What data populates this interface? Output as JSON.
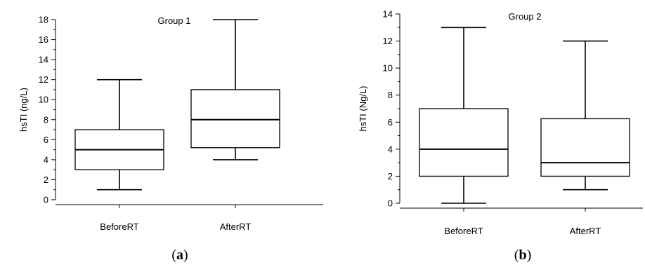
{
  "chart_data": [
    {
      "type": "box",
      "panel": "(a)",
      "panel_letter": "a",
      "title": "Group 1",
      "ylabel": "hsTI (ng/L)",
      "xlabel": "",
      "ylim": [
        0,
        18
      ],
      "yticks": [
        0,
        2,
        4,
        6,
        8,
        10,
        12,
        14,
        16,
        18
      ],
      "categories": [
        "BeforeRT",
        "AfterRT"
      ],
      "boxes": [
        {
          "category": "BeforeRT",
          "min": 1,
          "q1": 3,
          "median": 5,
          "q3": 7,
          "max": 12
        },
        {
          "category": "AfterRT",
          "min": 4,
          "q1": 5.2,
          "median": 8,
          "q3": 11,
          "max": 18
        }
      ]
    },
    {
      "type": "box",
      "panel": "(b)",
      "panel_letter": "b",
      "title": "Group 2",
      "ylabel": "hsTI (Ng/L)",
      "xlabel": "",
      "ylim": [
        0,
        14
      ],
      "yticks": [
        0,
        2,
        4,
        6,
        8,
        10,
        12,
        14
      ],
      "categories": [
        "BeforeRT",
        "AfterRT"
      ],
      "boxes": [
        {
          "category": "BeforeRT",
          "min": 0,
          "q1": 2,
          "median": 4,
          "q3": 7,
          "max": 13
        },
        {
          "category": "AfterRT",
          "min": 1,
          "q1": 2,
          "median": 3,
          "q3": 6.25,
          "max": 12
        }
      ]
    }
  ]
}
